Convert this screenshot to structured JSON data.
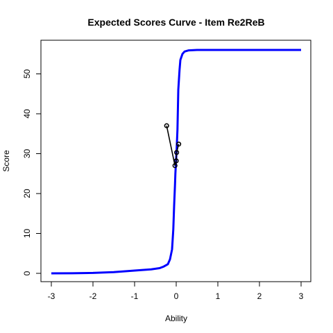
{
  "chart_data": {
    "type": "line",
    "title": "Expected Scores Curve - Item  Re2ReB",
    "xlabel": "Ability",
    "ylabel": "Score",
    "xlim": [
      -3,
      3
    ],
    "ylim": [
      0,
      56
    ],
    "xticks": [
      -3,
      -2,
      -1,
      0,
      1,
      2,
      3
    ],
    "yticks": [
      0,
      10,
      20,
      30,
      40,
      50
    ],
    "grid": false,
    "legend": "none",
    "series": [
      {
        "kind": "curve",
        "color": "#0000ff",
        "x": [
          -3.0,
          -2.5,
          -2.0,
          -1.5,
          -1.0,
          -0.6,
          -0.4,
          -0.3,
          -0.2,
          -0.15,
          -0.1,
          -0.07,
          -0.05,
          -0.03,
          -0.02,
          -0.01,
          0.0,
          0.01,
          0.03,
          0.05,
          0.08,
          0.1,
          0.15,
          0.2,
          0.3,
          0.5,
          1.0,
          2.0,
          3.0
        ],
        "y": [
          0.0,
          0.03,
          0.1,
          0.3,
          0.7,
          1.0,
          1.3,
          1.7,
          2.3,
          3.5,
          6.0,
          11.0,
          17.0,
          22.0,
          25.0,
          27.0,
          29.0,
          31.0,
          36.0,
          46.0,
          51.0,
          53.5,
          55.0,
          55.6,
          55.9,
          56.0,
          56.0,
          56.0,
          56.0
        ]
      },
      {
        "kind": "observed",
        "color": "#000000",
        "x": [
          -0.23,
          -0.03,
          0.0,
          0.01,
          0.06
        ],
        "y": [
          37.0,
          27.0,
          28.2,
          30.3,
          32.4
        ]
      }
    ]
  }
}
